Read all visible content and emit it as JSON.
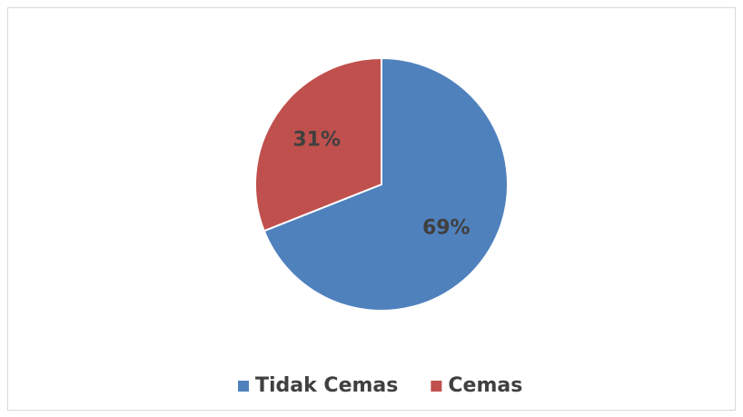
{
  "chart_data": {
    "type": "pie",
    "categories": [
      "Tidak Cemas",
      "Cemas"
    ],
    "values": [
      69,
      31
    ],
    "value_labels": [
      "69%",
      "31%"
    ],
    "colors": [
      "#4f81bd",
      "#c0504d"
    ],
    "legend": "bottom"
  }
}
